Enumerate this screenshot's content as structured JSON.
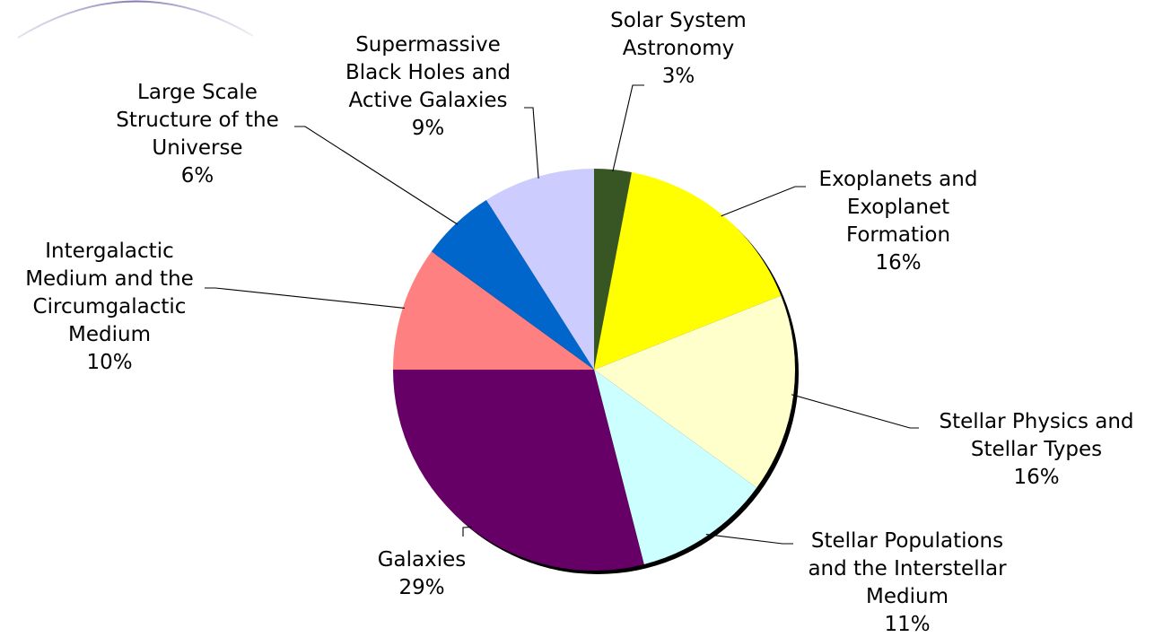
{
  "chart_data": {
    "type": "pie",
    "title": "",
    "start_angle": "12 o'clock",
    "direction": "clockwise",
    "legend": "none",
    "slices": [
      {
        "label": "Solar System Astronomy",
        "label_lines": [
          "Solar System",
          "Astronomy"
        ],
        "value": 3,
        "value_label": "3%",
        "color": "#375623"
      },
      {
        "label": "Exoplanets and Exoplanet Formation",
        "label_lines": [
          "Exoplanets and",
          "Exoplanet",
          "Formation"
        ],
        "value": 16,
        "value_label": "16%",
        "color": "#FFFF00"
      },
      {
        "label": "Stellar Physics and Stellar Types",
        "label_lines": [
          "Stellar Physics and",
          "Stellar Types"
        ],
        "value": 16,
        "value_label": "16%",
        "color": "#FFFFCC"
      },
      {
        "label": "Stellar Populations and the Interstellar Medium",
        "label_lines": [
          "Stellar Populations",
          "and the Interstellar",
          "Medium"
        ],
        "value": 11,
        "value_label": "11%",
        "color": "#CCFFFF"
      },
      {
        "label": "Galaxies",
        "label_lines": [
          "Galaxies"
        ],
        "value": 29,
        "value_label": "29%",
        "color": "#660066"
      },
      {
        "label": "Intergalactic Medium and the Circumgalactic Medium",
        "label_lines": [
          "Intergalactic",
          "Medium and the",
          "Circumgalactic",
          "Medium"
        ],
        "value": 10,
        "value_label": "10%",
        "color": "#FF8080"
      },
      {
        "label": "Large Scale Structure of the Universe",
        "label_lines": [
          "Large Scale",
          "Structure of the",
          "Universe"
        ],
        "value": 6,
        "value_label": "6%",
        "color": "#0066CC"
      },
      {
        "label": "Supermassive Black Holes and Active Galaxies",
        "label_lines": [
          "Supermassive",
          "Black Holes and",
          "Active Galaxies"
        ],
        "value": 9,
        "value_label": "9%",
        "color": "#CCCCFF"
      }
    ]
  }
}
